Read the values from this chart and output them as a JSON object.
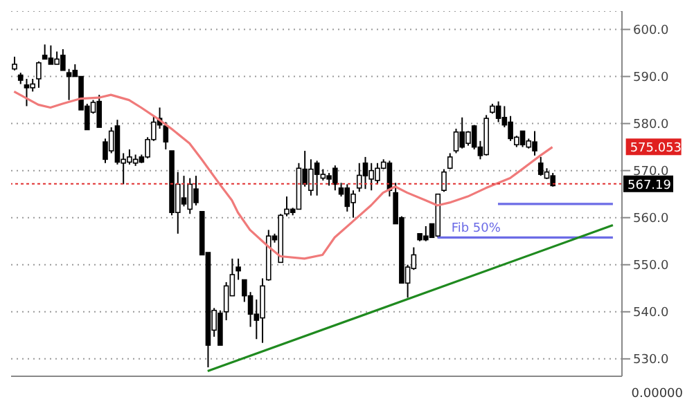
{
  "chart_data": {
    "type": "candlestick",
    "categories": [
      null,
      null,
      null,
      null,
      null,
      null,
      null,
      null,
      null,
      null,
      null,
      null,
      null,
      null,
      null,
      null,
      null,
      null,
      null,
      null,
      null,
      null,
      null,
      null,
      null,
      null,
      null,
      null,
      null,
      null,
      null,
      null,
      null,
      null,
      null,
      null,
      null,
      null,
      null,
      null,
      null,
      null,
      null,
      null,
      null,
      null,
      null,
      null,
      null,
      null,
      null,
      null,
      null,
      null,
      null,
      null,
      null,
      null,
      null,
      null,
      null,
      null,
      null,
      null,
      null,
      null,
      null,
      null,
      null,
      null,
      null,
      null,
      null,
      null,
      null,
      null,
      null,
      null,
      null,
      null,
      null,
      null,
      null,
      null,
      null,
      null,
      null,
      null,
      null,
      null,
      null,
      null,
      null,
      null,
      null,
      null,
      null,
      null,
      null,
      null,
      null
    ],
    "ohlc": [
      [
        591.6,
        594.2,
        591.3,
        592.6
      ],
      [
        590.3,
        590.8,
        588.4,
        589.2
      ],
      [
        588.2,
        589.5,
        583.7,
        587.6
      ],
      [
        587.6,
        589.5,
        586.8,
        588.4
      ],
      [
        589.5,
        593.2,
        587.6,
        592.9
      ],
      [
        594.5,
        596.8,
        593.7,
        593.7
      ],
      [
        593.9,
        596.6,
        592.6,
        592.6
      ],
      [
        592.6,
        595.3,
        592.6,
        593.7
      ],
      [
        594.5,
        595.8,
        591.3,
        591.3
      ],
      [
        590.8,
        591.6,
        585.0,
        590.0
      ],
      [
        591.3,
        592.6,
        590.0,
        590.0
      ],
      [
        590.0,
        590.0,
        582.9,
        582.9
      ],
      [
        583.7,
        584.2,
        578.7,
        578.7
      ],
      [
        582.4,
        585.0,
        582.1,
        584.5
      ],
      [
        584.7,
        586.1,
        579.2,
        579.2
      ],
      [
        576.1,
        576.8,
        571.6,
        572.4
      ],
      [
        574.2,
        579.2,
        573.7,
        578.4
      ],
      [
        579.5,
        580.8,
        571.3,
        571.8
      ],
      [
        571.6,
        573.7,
        567.1,
        572.4
      ],
      [
        571.8,
        574.5,
        571.3,
        572.9
      ],
      [
        571.6,
        573.4,
        571.0,
        572.4
      ],
      [
        572.9,
        573.4,
        571.6,
        571.8
      ],
      [
        572.9,
        577.1,
        572.6,
        576.6
      ],
      [
        576.6,
        581.6,
        576.3,
        580.3
      ],
      [
        581.1,
        583.4,
        578.9,
        579.7
      ],
      [
        579.5,
        580.3,
        574.5,
        576.1
      ],
      [
        574.2,
        574.2,
        560.5,
        561.1
      ],
      [
        561.1,
        569.7,
        556.6,
        567.1
      ],
      [
        564.2,
        568.9,
        562.4,
        562.9
      ],
      [
        561.8,
        568.4,
        560.8,
        567.1
      ],
      [
        566.1,
        568.9,
        562.6,
        563.2
      ],
      [
        561.3,
        561.3,
        552.1,
        552.1
      ],
      [
        552.6,
        552.6,
        528.2,
        532.9
      ],
      [
        536.1,
        540.8,
        534.7,
        540.3
      ],
      [
        539.7,
        540.3,
        532.9,
        532.9
      ],
      [
        540.0,
        546.3,
        538.2,
        545.5
      ],
      [
        543.4,
        551.3,
        543.4,
        547.9
      ],
      [
        549.5,
        551.3,
        546.8,
        548.7
      ],
      [
        546.8,
        546.8,
        542.1,
        543.4
      ],
      [
        543.4,
        544.2,
        536.8,
        539.5
      ],
      [
        539.5,
        542.6,
        534.2,
        538.2
      ],
      [
        538.7,
        547.1,
        533.4,
        545.5
      ],
      [
        546.8,
        557.4,
        546.6,
        556.1
      ],
      [
        556.1,
        556.6,
        554.7,
        555.3
      ],
      [
        550.5,
        560.8,
        550.5,
        560.5
      ],
      [
        560.8,
        564.5,
        560.3,
        561.8
      ],
      [
        561.8,
        562.1,
        560.5,
        561.1
      ],
      [
        561.8,
        571.6,
        561.8,
        570.5
      ],
      [
        570.3,
        574.2,
        566.6,
        567.1
      ],
      [
        565.8,
        572.4,
        564.7,
        570.3
      ],
      [
        571.6,
        572.1,
        564.7,
        569.2
      ],
      [
        568.4,
        570.3,
        567.9,
        569.2
      ],
      [
        568.9,
        569.5,
        566.8,
        568.2
      ],
      [
        570.5,
        571.1,
        565.8,
        567.1
      ],
      [
        566.3,
        567.4,
        564.5,
        565.0
      ],
      [
        566.3,
        567.1,
        561.3,
        562.4
      ],
      [
        563.2,
        565.8,
        560.0,
        565.0
      ],
      [
        566.3,
        571.6,
        565.5,
        569.0
      ],
      [
        571.6,
        572.9,
        566.1,
        568.9
      ],
      [
        568.2,
        571.6,
        565.8,
        570.0
      ],
      [
        567.9,
        571.6,
        567.1,
        570.5
      ],
      [
        570.5,
        572.4,
        570.3,
        571.8
      ],
      [
        571.6,
        572.1,
        564.5,
        565.8
      ],
      [
        565.3,
        567.4,
        558.7,
        558.7
      ],
      [
        560.0,
        560.3,
        546.1,
        546.1
      ],
      [
        546.1,
        550.0,
        543.0,
        549.5
      ],
      [
        549.2,
        553.7,
        548.9,
        552.1
      ],
      [
        556.6,
        556.6,
        555.0,
        555.3
      ],
      [
        556.1,
        558.2,
        555.0,
        555.3
      ],
      [
        558.7,
        558.7,
        555.8,
        555.8
      ],
      [
        556.1,
        565.0,
        555.8,
        565.0
      ],
      [
        565.8,
        570.3,
        565.5,
        569.7
      ],
      [
        570.5,
        573.7,
        570.3,
        572.9
      ],
      [
        574.2,
        578.9,
        573.7,
        578.2
      ],
      [
        578.2,
        581.3,
        574.7,
        575.0
      ],
      [
        575.8,
        578.4,
        575.3,
        578.2
      ],
      [
        579.5,
        579.7,
        574.5,
        575.0
      ],
      [
        575.0,
        576.3,
        572.4,
        573.2
      ],
      [
        573.4,
        581.8,
        573.2,
        581.1
      ],
      [
        582.4,
        584.2,
        582.1,
        583.7
      ],
      [
        583.7,
        584.7,
        580.3,
        581.1
      ],
      [
        581.3,
        583.7,
        579.2,
        579.7
      ],
      [
        580.3,
        581.6,
        576.3,
        576.8
      ],
      [
        575.5,
        577.4,
        575.0,
        577.1
      ],
      [
        578.4,
        578.4,
        575.0,
        575.5
      ],
      [
        575.0,
        576.8,
        574.7,
        576.3
      ],
      [
        576.1,
        578.4,
        573.2,
        574.2
      ],
      [
        571.6,
        572.9,
        568.9,
        569.2
      ],
      [
        568.4,
        570.5,
        568.2,
        569.7
      ],
      [
        568.9,
        569.5,
        566.6,
        566.8
      ],
      null,
      null,
      null,
      null,
      null,
      null,
      null,
      null,
      null,
      null,
      null
    ],
    "series": [
      {
        "type": "line",
        "color": "#f07a7a",
        "values": [
          586.8,
          null,
          null,
          null,
          584.0,
          null,
          583.4,
          null,
          584.2,
          null,
          null,
          585.3,
          null,
          null,
          585.5,
          null,
          586.1,
          null,
          null,
          585.0,
          null,
          583.4,
          null,
          null,
          580.8,
          null,
          578.9,
          null,
          null,
          575.8,
          null,
          572.4,
          null,
          null,
          567.1,
          null,
          563.7,
          561.1,
          null,
          557.4,
          null,
          null,
          553.9,
          null,
          551.8,
          null,
          null,
          null,
          551.3,
          null,
          null,
          552.1,
          null,
          555.8,
          null,
          null,
          559.2,
          null,
          null,
          562.6,
          null,
          565.3,
          null,
          566.6,
          null,
          565.3,
          null,
          null,
          563.7,
          null,
          562.6,
          null,
          563.2,
          null,
          null,
          564.5,
          null,
          null,
          566.3,
          null,
          null,
          null,
          568.4,
          null,
          570.3,
          null,
          null,
          573.2,
          null,
          575.0,
          null,
          null,
          null,
          null,
          null,
          null,
          null,
          null,
          null,
          null,
          null
        ]
      },
      {
        "type": "line",
        "color": "#6b6be6",
        "values": [
          null,
          null,
          null,
          null,
          null,
          null,
          null,
          null,
          null,
          null,
          null,
          null,
          null,
          null,
          null,
          null,
          null,
          null,
          null,
          null,
          null,
          null,
          null,
          null,
          null,
          null,
          null,
          null,
          null,
          null,
          null,
          null,
          null,
          null,
          null,
          null,
          null,
          null,
          null,
          null,
          null,
          null,
          null,
          null,
          null,
          null,
          null,
          null,
          null,
          null,
          null,
          null,
          null,
          null,
          null,
          null,
          null,
          null,
          null,
          null,
          null,
          null,
          null,
          null,
          null,
          null,
          null,
          null,
          null,
          null,
          null,
          null,
          null,
          null,
          null,
          null,
          null,
          null,
          null,
          null,
          562.9,
          null,
          null,
          null,
          null,
          null,
          null,
          null,
          null,
          null,
          null,
          null,
          null,
          null,
          null,
          null,
          null,
          null,
          null,
          562.9,
          null
        ]
      },
      {
        "type": "line",
        "name": "Fib 50%",
        "color": "#6b6be6",
        "values": [
          null,
          null,
          null,
          null,
          null,
          null,
          null,
          null,
          null,
          null,
          null,
          null,
          null,
          null,
          null,
          null,
          null,
          null,
          null,
          null,
          null,
          null,
          null,
          null,
          null,
          null,
          null,
          null,
          null,
          null,
          null,
          null,
          null,
          null,
          null,
          null,
          null,
          null,
          null,
          null,
          null,
          null,
          null,
          null,
          null,
          null,
          null,
          null,
          null,
          null,
          null,
          null,
          null,
          null,
          null,
          null,
          null,
          null,
          null,
          null,
          null,
          null,
          null,
          null,
          null,
          null,
          null,
          null,
          null,
          null,
          555.8,
          null,
          null,
          null,
          null,
          null,
          null,
          null,
          null,
          null,
          null,
          null,
          null,
          null,
          null,
          null,
          null,
          null,
          null,
          null,
          null,
          null,
          null,
          null,
          null,
          null,
          null,
          null,
          null,
          555.8,
          null
        ]
      },
      {
        "type": "line",
        "color": "#1f8a1f",
        "values": [
          null,
          null,
          null,
          null,
          null,
          null,
          null,
          null,
          null,
          null,
          null,
          null,
          null,
          null,
          null,
          null,
          null,
          null,
          null,
          null,
          null,
          null,
          null,
          null,
          null,
          null,
          null,
          null,
          null,
          null,
          null,
          null,
          527.4,
          null,
          null,
          null,
          null,
          null,
          null,
          null,
          null,
          null,
          null,
          null,
          null,
          null,
          null,
          null,
          null,
          null,
          null,
          null,
          null,
          null,
          null,
          null,
          null,
          null,
          null,
          null,
          null,
          null,
          null,
          null,
          null,
          null,
          null,
          null,
          null,
          null,
          null,
          null,
          null,
          null,
          null,
          null,
          null,
          null,
          null,
          null,
          null,
          null,
          null,
          null,
          null,
          null,
          null,
          null,
          null,
          null,
          null,
          null,
          null,
          null,
          null,
          null,
          null,
          null,
          null,
          558.4,
          null
        ]
      }
    ],
    "ylim": [
      526.3,
      603.9
    ],
    "yticks": [
      {
        "value": 530,
        "label": "530.0"
      },
      {
        "value": 540,
        "label": "540.0"
      },
      {
        "value": 550,
        "label": "550.0"
      },
      {
        "value": 560,
        "label": "560.0"
      },
      {
        "value": 570,
        "label": "570.0"
      },
      {
        "value": 580,
        "label": "580.0"
      },
      {
        "value": 590,
        "label": "590.0"
      },
      {
        "value": 600,
        "label": "600.0"
      }
    ],
    "grid": "y",
    "ref_lines": [
      {
        "axis": "y",
        "value": 567.19,
        "label": "567.19",
        "color": "#e03030",
        "line_style": "dotted"
      }
    ],
    "annotations": [
      {
        "text": "575.053",
        "y": 575.053
      },
      "0.00000"
    ]
  }
}
